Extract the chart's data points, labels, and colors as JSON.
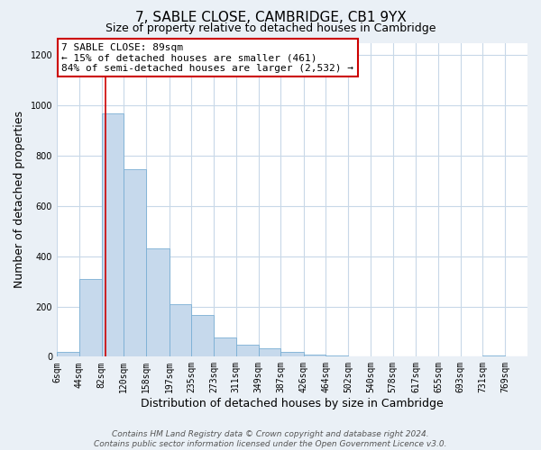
{
  "title": "7, SABLE CLOSE, CAMBRIDGE, CB1 9YX",
  "subtitle": "Size of property relative to detached houses in Cambridge",
  "xlabel": "Distribution of detached houses by size in Cambridge",
  "ylabel": "Number of detached properties",
  "bar_color": "#c6d9ec",
  "bar_edge_color": "#7aafd4",
  "vline_x": 89,
  "vline_color": "#cc0000",
  "categories": [
    "6sqm",
    "44sqm",
    "82sqm",
    "120sqm",
    "158sqm",
    "197sqm",
    "235sqm",
    "273sqm",
    "311sqm",
    "349sqm",
    "387sqm",
    "426sqm",
    "464sqm",
    "502sqm",
    "540sqm",
    "578sqm",
    "617sqm",
    "655sqm",
    "693sqm",
    "731sqm",
    "769sqm"
  ],
  "bin_edges": [
    6,
    44,
    82,
    120,
    158,
    197,
    235,
    273,
    311,
    349,
    387,
    426,
    464,
    502,
    540,
    578,
    617,
    655,
    693,
    731,
    769
  ],
  "bar_heights": [
    20,
    310,
    970,
    745,
    430,
    210,
    165,
    75,
    48,
    35,
    18,
    10,
    5,
    2,
    1,
    0,
    0,
    0,
    0,
    5,
    0
  ],
  "ylim": [
    0,
    1250
  ],
  "yticks": [
    0,
    200,
    400,
    600,
    800,
    1000,
    1200
  ],
  "ann_line1": "7 SABLE CLOSE: 89sqm",
  "ann_line2": "← 15% of detached houses are smaller (461)",
  "ann_line3": "84% of semi-detached houses are larger (2,532) →",
  "annotation_box_color": "#ffffff",
  "annotation_box_edge_color": "#cc0000",
  "footer_line1": "Contains HM Land Registry data © Crown copyright and database right 2024.",
  "footer_line2": "Contains public sector information licensed under the Open Government Licence v3.0.",
  "bg_color": "#eaf0f6",
  "plot_bg_color": "#ffffff",
  "grid_color": "#c8d8e8",
  "title_fontsize": 11,
  "subtitle_fontsize": 9,
  "axis_label_fontsize": 9,
  "tick_fontsize": 7,
  "ann_fontsize": 8,
  "footer_fontsize": 6.5
}
